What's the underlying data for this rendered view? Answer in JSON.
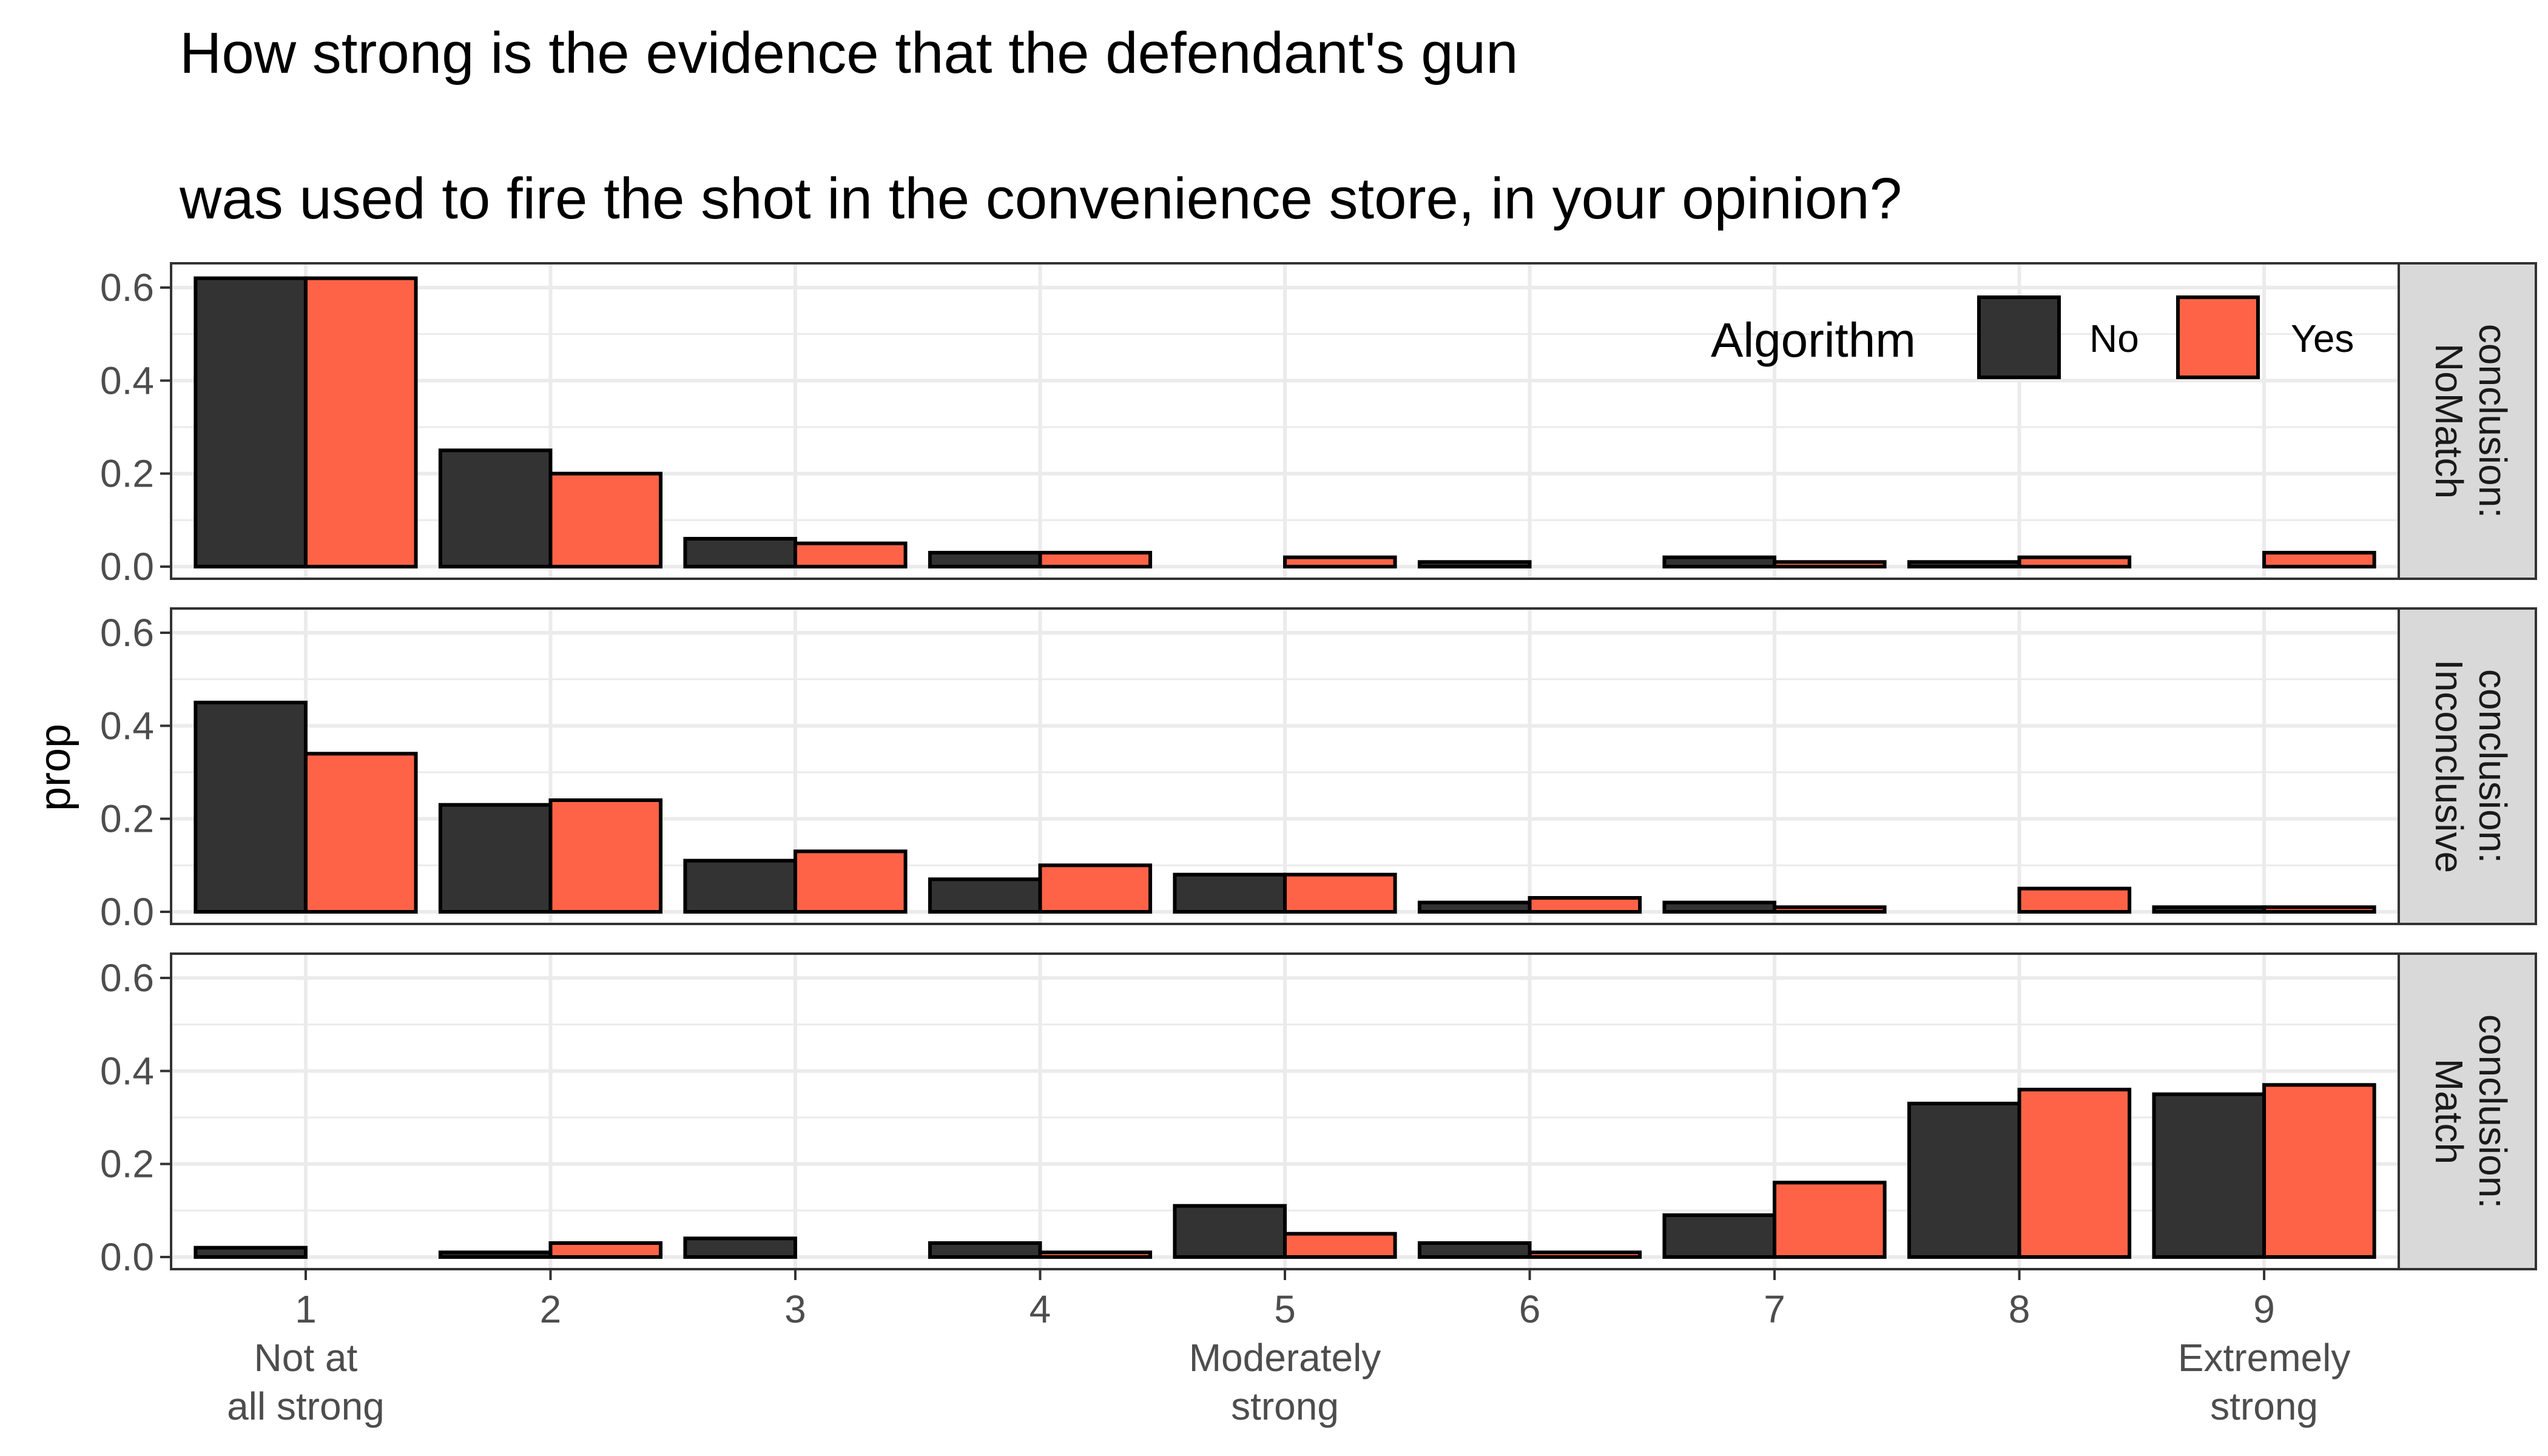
{
  "chart_data": {
    "type": "bar",
    "title": [
      "How strong is the evidence that the defendant's gun",
      "was used to fire the shot in the convenience store, in your opinion?"
    ],
    "ylabel": "prop",
    "ylim": [
      0,
      0.65
    ],
    "yticks": [
      "0.0",
      "0.2",
      "0.4",
      "0.6"
    ],
    "x": [
      "1",
      "2",
      "3",
      "4",
      "5",
      "6",
      "7",
      "8",
      "9"
    ],
    "x_sublabels": [
      [
        "Not at",
        "all strong"
      ],
      [],
      [],
      [],
      [
        "Moderately",
        "strong"
      ],
      [],
      [],
      [],
      [
        "Extremely",
        "strong"
      ]
    ],
    "legend": {
      "title": "Algorithm",
      "position": "top-right",
      "entries": [
        "No",
        "Yes"
      ]
    },
    "colors": {
      "No": "#333333",
      "Yes": "#ff6347"
    },
    "grid": true,
    "panels": [
      {
        "strip": [
          "conclusion:",
          "NoMatch"
        ],
        "series": [
          {
            "name": "No",
            "values": [
              0.62,
              0.25,
              0.06,
              0.03,
              null,
              0.01,
              0.02,
              0.01,
              null
            ]
          },
          {
            "name": "Yes",
            "values": [
              0.62,
              0.2,
              0.05,
              0.03,
              0.02,
              null,
              0.01,
              0.02,
              0.03
            ]
          }
        ]
      },
      {
        "strip": [
          "conclusion:",
          "Inconclusive"
        ],
        "series": [
          {
            "name": "No",
            "values": [
              0.45,
              0.23,
              0.11,
              0.07,
              0.08,
              0.02,
              0.02,
              null,
              0.01
            ]
          },
          {
            "name": "Yes",
            "values": [
              0.34,
              0.24,
              0.13,
              0.1,
              0.08,
              0.03,
              0.01,
              0.05,
              0.01
            ]
          }
        ]
      },
      {
        "strip": [
          "conclusion:",
          "Match"
        ],
        "series": [
          {
            "name": "No",
            "values": [
              0.02,
              0.01,
              0.04,
              0.03,
              0.11,
              0.03,
              0.09,
              0.33,
              0.35
            ]
          },
          {
            "name": "Yes",
            "values": [
              null,
              0.03,
              null,
              0.01,
              0.05,
              0.01,
              0.16,
              0.36,
              0.37
            ]
          }
        ]
      }
    ]
  }
}
